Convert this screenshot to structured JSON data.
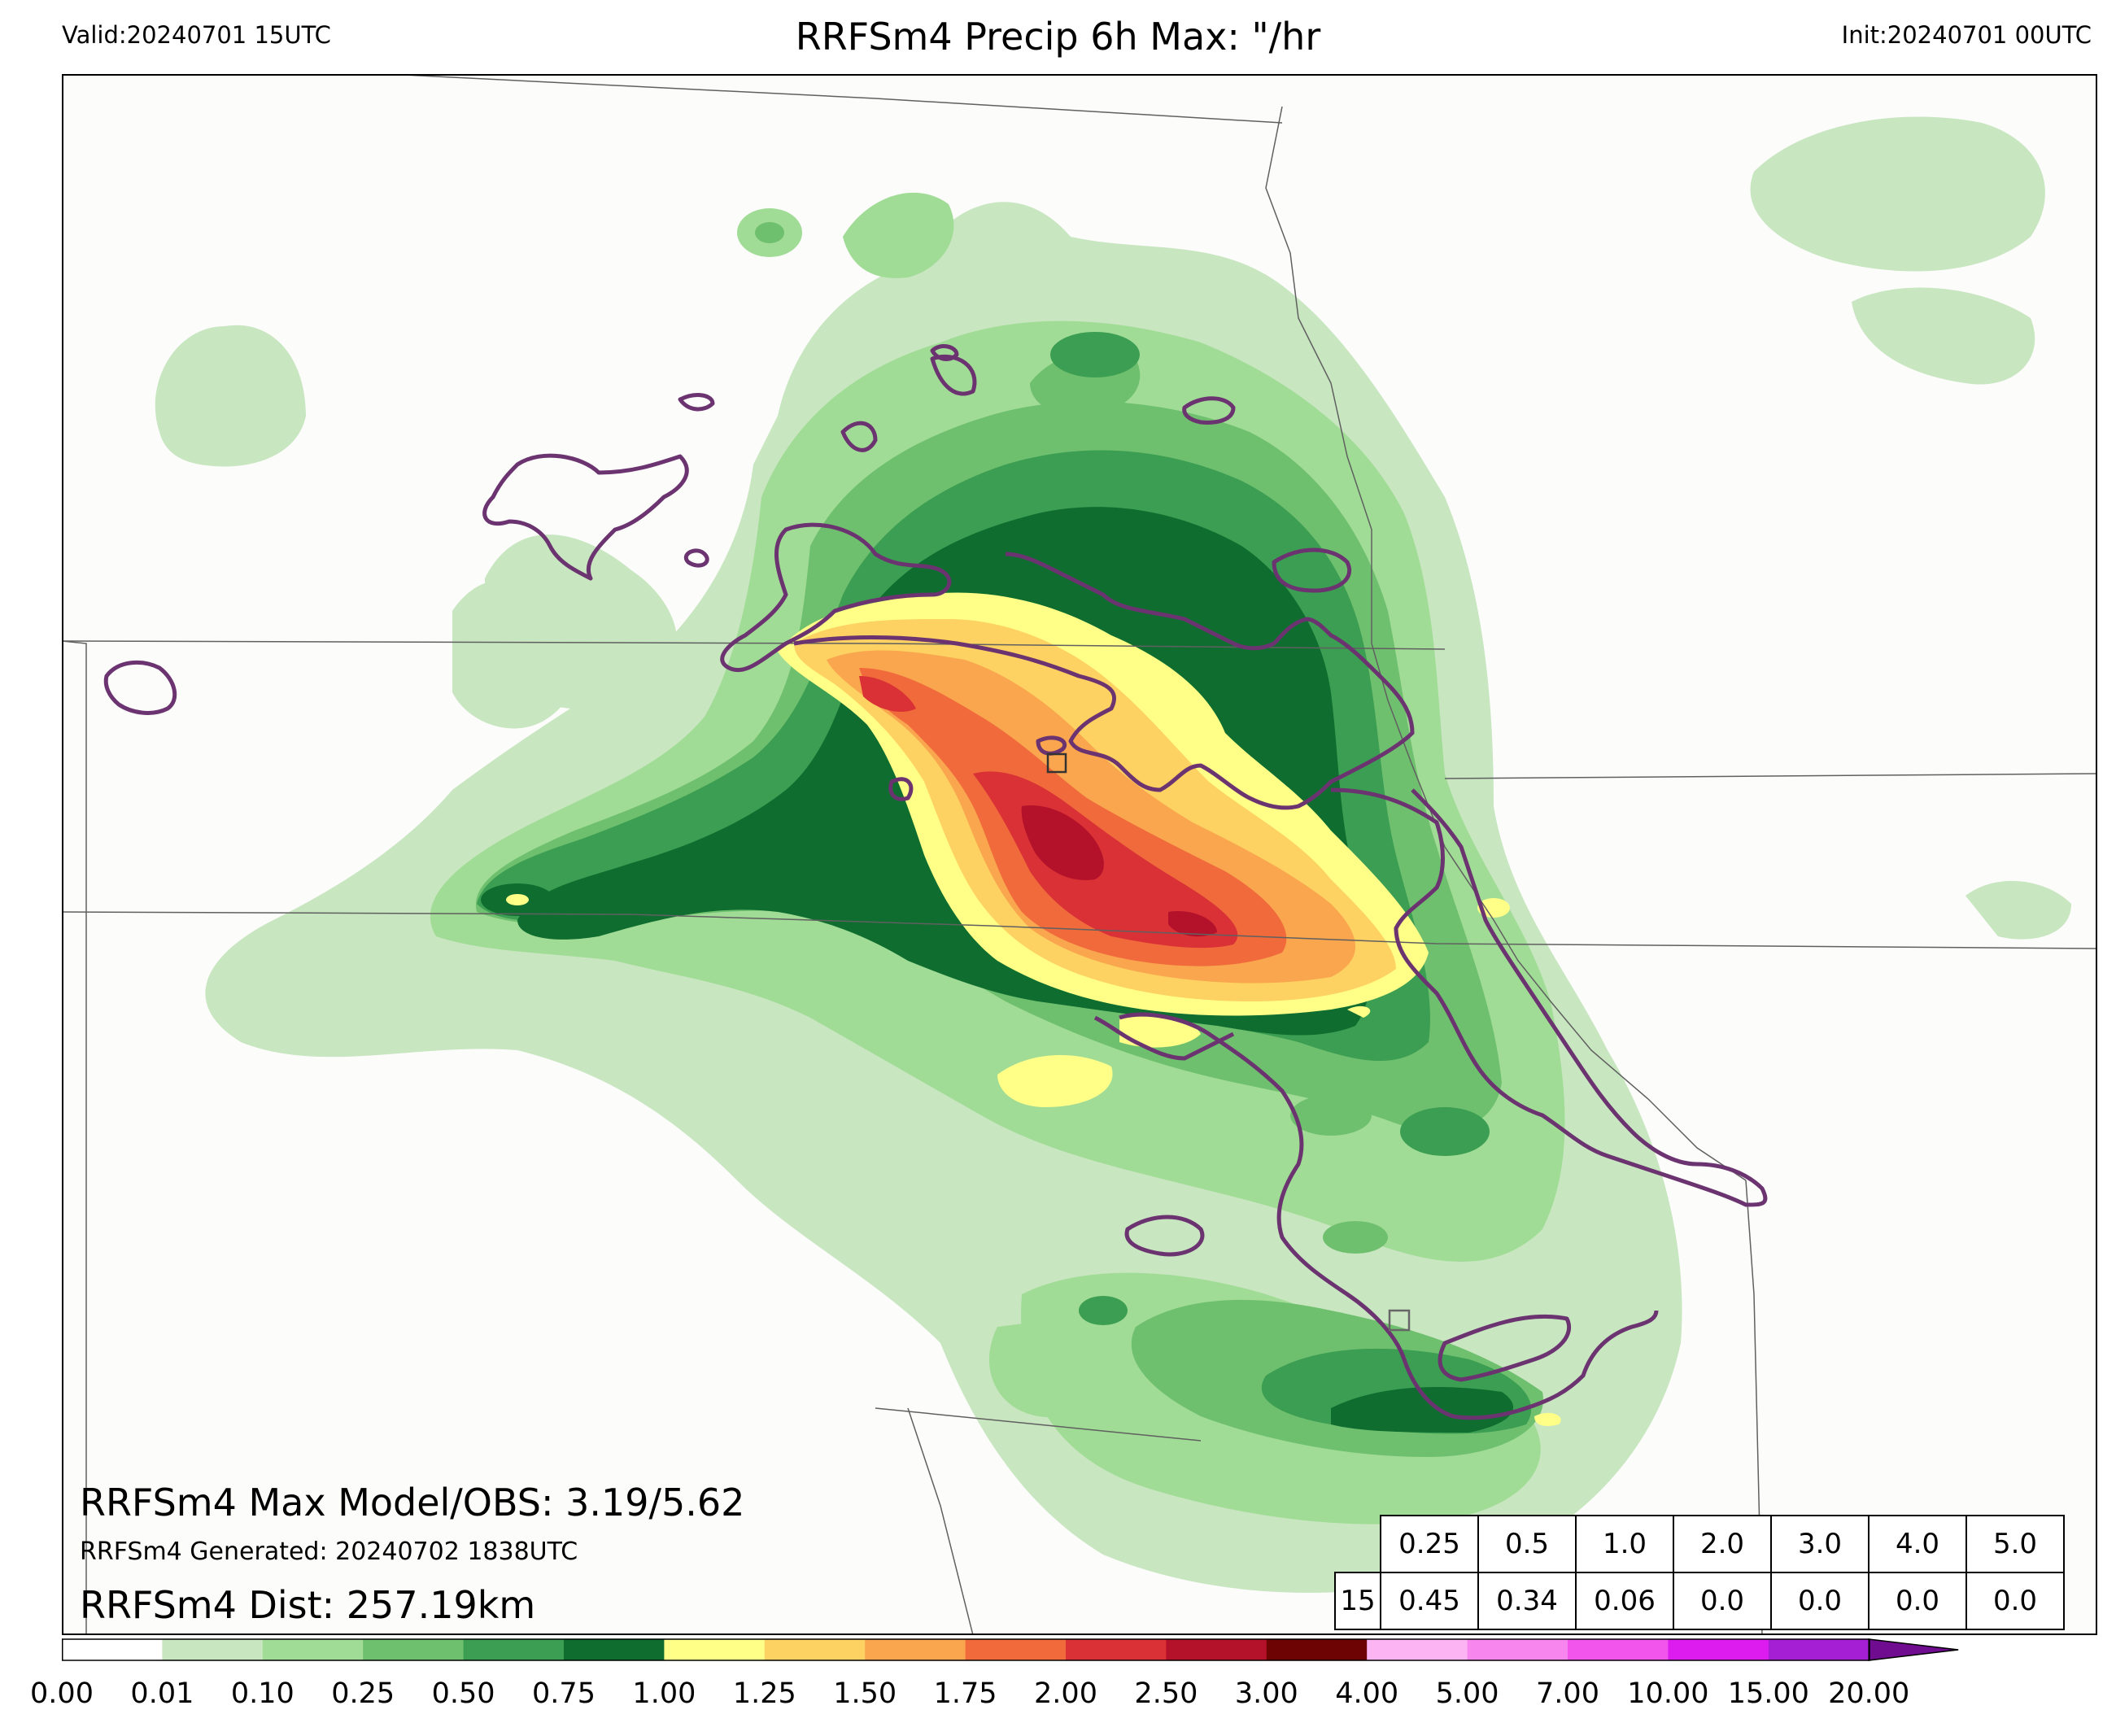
{
  "header": {
    "valid": "Valid:20240701 15UTC",
    "title": "RRFSm4 Precip 6h Max: \"/hr",
    "init": "Init:20240701 00UTC"
  },
  "annotations": {
    "max_line": "RRFSm4 Max Model/OBS: 3.19/5.62",
    "generated": "RRFSm4 Generated: 20240702 1838UTC",
    "distance": "RRFSm4 Dist: 257.19km"
  },
  "stats_table": {
    "thresholds": [
      "0.25",
      "0.5",
      "1.0",
      "2.0",
      "3.0",
      "4.0",
      "5.0"
    ],
    "row_label": "15",
    "values": [
      "0.45",
      "0.34",
      "0.06",
      "0.0",
      "0.0",
      "0.0",
      "0.0"
    ]
  },
  "colorbar": {
    "ticks": [
      "0.00",
      "0.01",
      "0.10",
      "0.25",
      "0.50",
      "0.75",
      "1.00",
      "1.25",
      "1.50",
      "1.75",
      "2.00",
      "2.50",
      "3.00",
      "4.00",
      "5.00",
      "7.00",
      "10.00",
      "15.00",
      "20.00"
    ],
    "colors": [
      "#ffffff",
      "#c8e6c0",
      "#a1dc96",
      "#6fc06e",
      "#3c9e52",
      "#0f6e2f",
      "#ffff88",
      "#fdd162",
      "#f9a64e",
      "#f06a3c",
      "#d93136",
      "#b4122a",
      "#6e0304",
      "#fdb4f3",
      "#f786ef",
      "#f155ec",
      "#dd1cf0",
      "#a520d5",
      "#6f0c8f"
    ]
  },
  "colors": {
    "map_background": "#fcfcfb",
    "border_lines": "#606060",
    "observed_contour": "#6b3470",
    "max_marker": "#333333"
  }
}
